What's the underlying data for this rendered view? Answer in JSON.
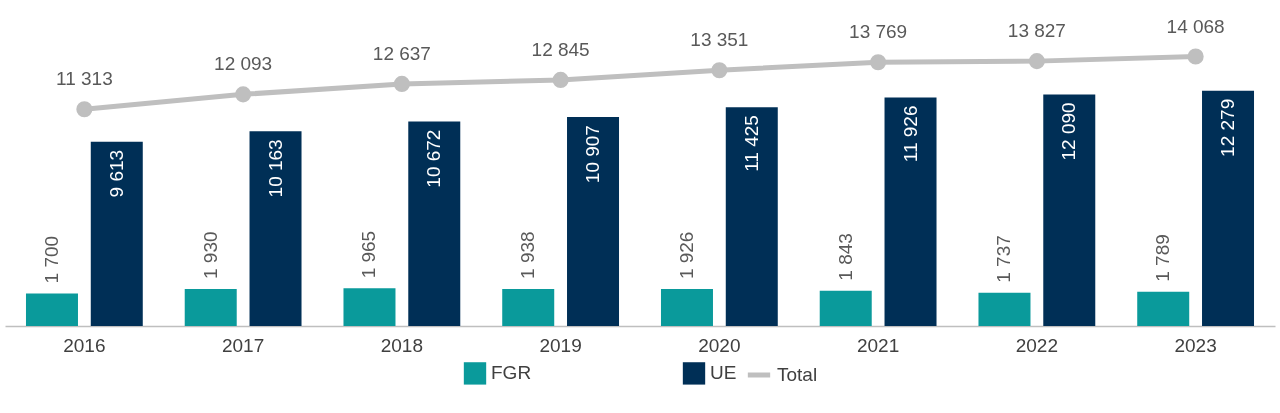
{
  "chart_data": {
    "type": "bar",
    "categories": [
      "2016",
      "2017",
      "2018",
      "2019",
      "2020",
      "2021",
      "2022",
      "2023"
    ],
    "series": [
      {
        "name": "FGR",
        "color": "#0a9a9b",
        "values": [
          1700,
          1930,
          1965,
          1938,
          1926,
          1843,
          1737,
          1789
        ],
        "value_labels": [
          "1 700",
          "1 930",
          "1 965",
          "1 938",
          "1 926",
          "1 843",
          "1 737",
          "1 789"
        ]
      },
      {
        "name": "UE",
        "color": "#002f56",
        "values": [
          9613,
          10163,
          10672,
          10907,
          11425,
          11926,
          12090,
          12279
        ],
        "value_labels": [
          "9 613",
          "10 163",
          "10 672",
          "10 907",
          "11 425",
          "11 926",
          "12 090",
          "12 279"
        ]
      },
      {
        "name": "Total",
        "type": "line",
        "color": "#bfbfbf",
        "values": [
          11313,
          12093,
          12637,
          12845,
          13351,
          13769,
          13827,
          14068
        ],
        "value_labels": [
          "11 313",
          "12 093",
          "12 637",
          "12 845",
          "13 351",
          "13 769",
          "13 827",
          "14 068"
        ]
      }
    ],
    "marker": "circle",
    "legend": "bottom"
  }
}
